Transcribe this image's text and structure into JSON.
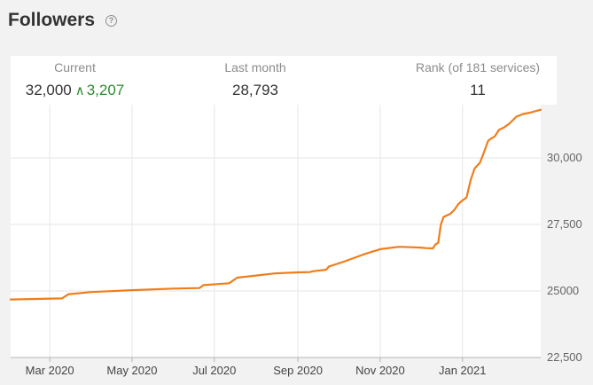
{
  "header": {
    "title": "Followers",
    "help_icon": "question-circle-icon"
  },
  "stats": {
    "current_label": "Current",
    "current_value": "32,000",
    "current_delta_icon": "up-chevron-icon",
    "current_delta": "3,207",
    "last_month_label": "Last month",
    "last_month_value": "28,793",
    "rank_label": "Rank (of 181 services)",
    "rank_value": "11"
  },
  "colors": {
    "line": "#f07d1a",
    "delta": "#2e8b2e",
    "grid": "#e6e6e6",
    "background": "#f2f2f2"
  },
  "chart_data": {
    "type": "line",
    "title": "",
    "xlabel": "",
    "ylabel": "",
    "ylim": [
      22500,
      32000
    ],
    "xlim": [
      "2020-02-01",
      "2021-02-28"
    ],
    "y_ticks": [
      22500,
      25000,
      27500,
      30000
    ],
    "y_tick_labels": [
      "22,500",
      "25000",
      "27,500",
      "30,000"
    ],
    "x_ticks": [
      "2020-03-01",
      "2020-05-01",
      "2020-07-01",
      "2020-09-01",
      "2020-11-01",
      "2021-01-01"
    ],
    "x_tick_labels": [
      "Mar 2020",
      "May 2020",
      "Jul 2020",
      "Sep 2020",
      "Nov 2020",
      "Jan 2021"
    ],
    "grid": true,
    "series": [
      {
        "x": [
          "2020-02-01",
          "2020-02-20",
          "2020-03-10",
          "2020-03-15",
          "2020-04-01",
          "2020-05-01",
          "2020-06-01",
          "2020-06-20",
          "2020-06-23",
          "2020-07-12",
          "2020-07-18",
          "2020-08-01",
          "2020-08-15",
          "2020-09-01",
          "2020-09-10",
          "2020-09-12",
          "2020-09-22",
          "2020-09-24",
          "2020-10-05",
          "2020-10-20",
          "2020-11-01",
          "2020-11-15",
          "2020-12-01",
          "2020-12-05",
          "2020-12-10",
          "2020-12-12",
          "2020-12-14",
          "2020-12-16",
          "2020-12-18",
          "2020-12-20",
          "2020-12-23",
          "2020-12-26",
          "2020-12-29",
          "2021-01-01",
          "2021-01-04",
          "2021-01-07",
          "2021-01-10",
          "2021-01-14",
          "2021-01-17",
          "2021-01-20",
          "2021-01-22",
          "2021-01-25",
          "2021-01-28",
          "2021-02-01",
          "2021-02-05",
          "2021-02-10",
          "2021-02-15",
          "2021-02-20",
          "2021-02-28"
        ],
        "y": [
          24680,
          24700,
          24720,
          24880,
          24960,
          25030,
          25090,
          25110,
          25220,
          25290,
          25500,
          25580,
          25660,
          25700,
          25710,
          25740,
          25800,
          25920,
          26100,
          26380,
          26570,
          26660,
          26630,
          26610,
          26600,
          26750,
          26810,
          27500,
          27780,
          27830,
          27900,
          28050,
          28270,
          28400,
          28510,
          29160,
          29600,
          29820,
          30220,
          30640,
          30720,
          30810,
          31050,
          31150,
          31300,
          31550,
          31650,
          31700,
          31810
        ]
      }
    ]
  }
}
